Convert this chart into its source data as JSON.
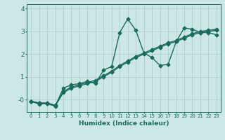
{
  "xlabel": "Humidex (Indice chaleur)",
  "bg_color": "#cce8e5",
  "grid_color": "#b0d0cc",
  "line_color": "#1a6b5e",
  "xlim": [
    -0.5,
    23.5
  ],
  "ylim": [
    -0.55,
    4.2
  ],
  "xticks": [
    0,
    1,
    2,
    3,
    4,
    5,
    6,
    7,
    8,
    9,
    10,
    11,
    12,
    13,
    14,
    15,
    16,
    17,
    18,
    19,
    20,
    21,
    22,
    23
  ],
  "yticks": [
    0,
    1,
    2,
    3,
    4
  ],
  "ytick_labels": [
    "-0",
    "1",
    "2",
    "3",
    "4"
  ],
  "series": [
    {
      "x": [
        0,
        1,
        2,
        3,
        4,
        5,
        6,
        7,
        8,
        9,
        10,
        11,
        12,
        13,
        14,
        15,
        16,
        17,
        18,
        19,
        20,
        21,
        22,
        23
      ],
      "y": [
        -0.08,
        -0.15,
        -0.15,
        -0.25,
        0.35,
        0.55,
        0.65,
        0.75,
        0.85,
        1.05,
        1.25,
        1.5,
        1.7,
        1.9,
        2.05,
        2.2,
        2.35,
        2.5,
        2.6,
        2.75,
        2.9,
        3.0,
        3.05,
        3.1
      ]
    },
    {
      "x": [
        0,
        1,
        2,
        3,
        4,
        5,
        6,
        7,
        8,
        9,
        10,
        11,
        12,
        13,
        14,
        15,
        16,
        17,
        18,
        19,
        20,
        21,
        22,
        23
      ],
      "y": [
        -0.08,
        -0.15,
        -0.18,
        -0.28,
        0.3,
        0.5,
        0.6,
        0.7,
        0.8,
        1.0,
        1.2,
        1.45,
        1.65,
        1.85,
        2.0,
        2.15,
        2.3,
        2.45,
        2.55,
        2.7,
        2.85,
        2.95,
        3.0,
        3.05
      ]
    },
    {
      "x": [
        0,
        1,
        2,
        3,
        4,
        5,
        6,
        7,
        8,
        9,
        10,
        11,
        12,
        13,
        14,
        15,
        16,
        17,
        18,
        19,
        20,
        21,
        22,
        23
      ],
      "y": [
        -0.08,
        -0.2,
        -0.18,
        -0.3,
        0.5,
        0.65,
        0.7,
        0.8,
        0.7,
        1.3,
        1.45,
        2.95,
        3.55,
        3.05,
        2.05,
        1.85,
        1.5,
        1.55,
        2.55,
        3.15,
        3.1,
        2.95,
        2.95,
        2.85
      ]
    }
  ],
  "marker": "D",
  "markersize": 2.5,
  "linewidth": 1.0
}
